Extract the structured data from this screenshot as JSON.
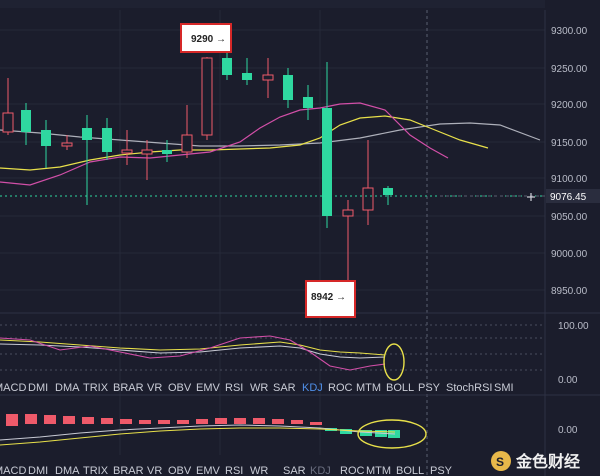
{
  "colors": {
    "background": "#1b1d2c",
    "grid": "#2a2d3e",
    "up_candle": "#ef5a6a",
    "down_candle": "#2fd8a0",
    "last_price_line": "#2fd8a0",
    "ma_white": "#c8cad4",
    "ma_yellow": "#e8e04a",
    "ma_pink": "#d24fa8",
    "annotation_border": "#d62828",
    "active_tab": "#4f8fe8",
    "ellipse": "#e8e04a"
  },
  "price_axis": {
    "labels": [
      "9300.00",
      "9250.00",
      "9200.00",
      "9150.00",
      "9100.00",
      "9050.00",
      "9000.00",
      "8950.00"
    ],
    "last_price": "9076.45",
    "crosshair_icon": "plus-icon"
  },
  "annotations": {
    "high": "9290 →",
    "low": "8942 →"
  },
  "indicator_panel": {
    "axis_labels": [
      "100.00",
      "0.00"
    ]
  },
  "macd_panel": {
    "axis_label": "0.00"
  },
  "tabs_row_1": [
    "MACD",
    "DMI",
    "DMA",
    "TRIX",
    "BRAR",
    "VR",
    "OBV",
    "EMV",
    "RSI",
    "WR",
    "SAR",
    "KDJ",
    "ROC",
    "MTM",
    "BOLL",
    "PSY",
    "StochRSI",
    "SMI"
  ],
  "tabs_row_1_active": "KDJ",
  "tabs_row_2": [
    "MACD",
    "DMI",
    "DMA",
    "TRIX",
    "BRAR",
    "VR",
    "OBV",
    "EMV",
    "RSI",
    "WR",
    "SAR",
    "KDJ",
    "ROC",
    "MTM",
    "BOLL",
    "PSY"
  ],
  "tabs_row_2_dim": "KDJ",
  "watermark": {
    "text": "金色财经",
    "logo_icon": "jinse-logo-icon"
  }
}
